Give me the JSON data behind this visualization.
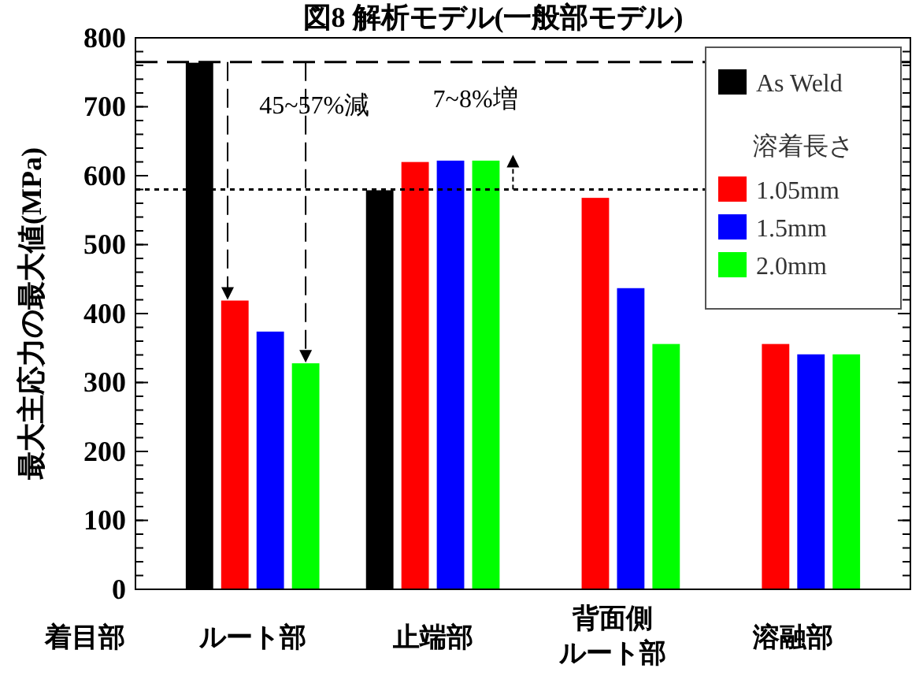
{
  "chart_data": {
    "type": "bar",
    "title": "図8 解析モデル(一般部モデル)",
    "xlabel": "着目部",
    "ylabel": "最大主応力の最大値(MPa)",
    "legend_title": "溶着長さ",
    "categories": [
      "ルート部",
      "止端部",
      "背面側ルート部",
      "溶融部"
    ],
    "series": [
      {
        "name": "As Weld",
        "color": "#000000",
        "values": [
          765,
          580,
          null,
          null
        ]
      },
      {
        "name": "1.05mm",
        "color": "#ff0000",
        "values": [
          420,
          621,
          569,
          357
        ]
      },
      {
        "name": "1.5mm",
        "color": "#0000ff",
        "values": [
          375,
          623,
          438,
          342
        ]
      },
      {
        "name": "2.0mm",
        "color": "#00ff00",
        "values": [
          329,
          623,
          357,
          342
        ]
      }
    ],
    "ylim": [
      0,
      800
    ],
    "yticks": [
      0,
      100,
      200,
      300,
      400,
      500,
      600,
      700,
      800
    ],
    "ref_lines": [
      {
        "axis": "y",
        "value": 765,
        "line_style": "dashed"
      },
      {
        "axis": "y",
        "value": 580,
        "line_style": "dotted"
      }
    ],
    "annotations": [
      "45~57%減",
      "7~8%増"
    ],
    "legend": "top right",
    "grid": false
  }
}
